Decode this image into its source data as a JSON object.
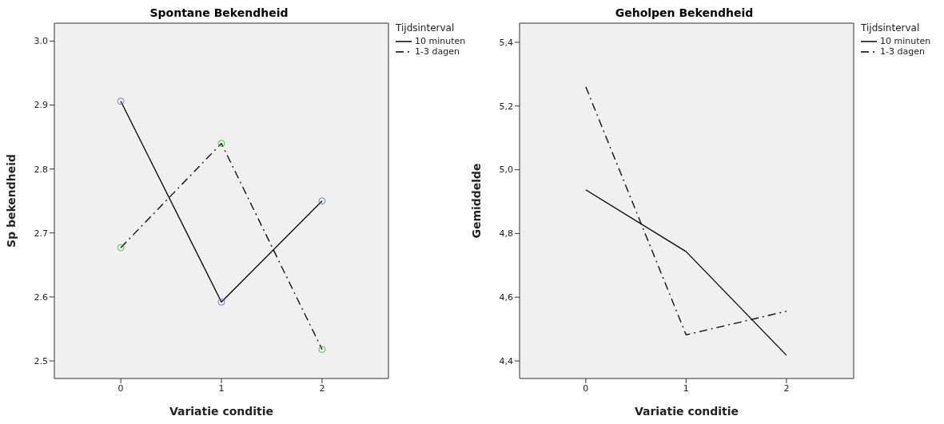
{
  "chart_data": [
    {
      "type": "line",
      "title": "Spontane Bekendheid",
      "xlabel": "Variatie conditie",
      "ylabel": "Sp bekendheid",
      "legend_title": "Tijdsinterval",
      "legend": "top right",
      "marker": "circle",
      "grid": false,
      "x": [
        0,
        1,
        2
      ],
      "xlim": [
        -0.66,
        2.66
      ],
      "xticks": [
        0,
        1,
        2
      ],
      "ylim": [
        2.4725,
        3.028
      ],
      "yticks": [
        {
          "value": 2.5,
          "label": "2.5"
        },
        {
          "value": 2.6,
          "label": "2.6"
        },
        {
          "value": 2.7,
          "label": "2.7"
        },
        {
          "value": 2.8,
          "label": "2.8"
        },
        {
          "value": 2.9,
          "label": "2.9"
        },
        {
          "value": 3,
          "label": "3.0"
        }
      ],
      "series": [
        {
          "name": "10 minuten",
          "color": "#000000",
          "line_style": "solid",
          "colors": [
            "#6a7fc9",
            "#6a7fc9",
            "#6a7fc9"
          ],
          "values": [
            2.906,
            2.592,
            2.75
          ]
        },
        {
          "name": "1-3 dagen",
          "color": "#000000",
          "line_style": "dashed",
          "colors": [
            "#4cbf4c",
            "#4cbf4c",
            "#4cbf4c"
          ],
          "values": [
            2.677,
            2.84,
            2.518
          ]
        }
      ]
    },
    {
      "type": "line",
      "title": "Geholpen Bekendheid",
      "xlabel": "Variatie conditie",
      "ylabel": "Gemiddelde",
      "legend_title": "Tijdsinterval",
      "legend": "top right",
      "grid": false,
      "x": [
        0,
        1,
        2
      ],
      "xlim": [
        -0.66,
        2.67
      ],
      "xticks": [
        0,
        1,
        2
      ],
      "ylim": [
        4.345,
        5.46
      ],
      "yticks": [
        {
          "value": 4.4,
          "label": "4,4"
        },
        {
          "value": 4.6,
          "label": "4,6"
        },
        {
          "value": 4.8,
          "label": "4,8"
        },
        {
          "value": 5,
          "label": "5,0"
        },
        {
          "value": 5.2,
          "label": "5,2"
        },
        {
          "value": 5.4,
          "label": "5,4"
        }
      ],
      "series": [
        {
          "name": "10 minuten",
          "color": "#000000",
          "line_style": "solid",
          "values": [
            4.937,
            4.743,
            4.418
          ]
        },
        {
          "name": "1-3 dagen",
          "color": "#000000",
          "line_style": "dashed",
          "values": [
            5.26,
            4.482,
            4.556
          ]
        }
      ]
    }
  ]
}
